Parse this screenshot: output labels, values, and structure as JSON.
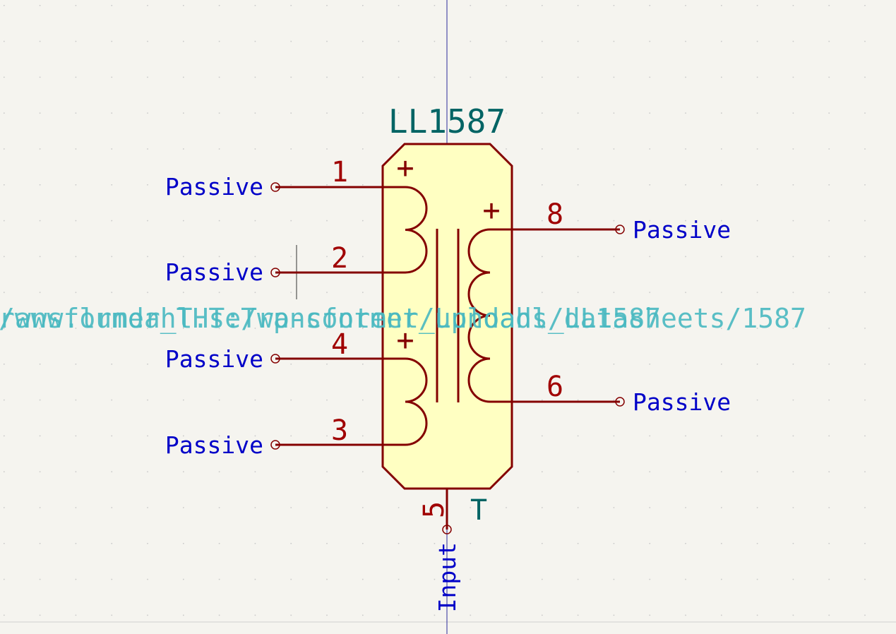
{
  "component": {
    "reference": "LL1587",
    "value": "T"
  },
  "pins": [
    {
      "number": "1",
      "type": "Passive"
    },
    {
      "number": "2",
      "type": "Passive"
    },
    {
      "number": "4",
      "type": "Passive"
    },
    {
      "number": "3",
      "type": "Passive"
    },
    {
      "number": "8",
      "type": "Passive"
    },
    {
      "number": "6",
      "type": "Passive"
    },
    {
      "number": "5",
      "type": "Input"
    }
  ],
  "polarity_marks": [
    "+",
    "+",
    "+"
  ],
  "overlay": {
    "line_a": "ransformer_THT:Transformer_Lundahl_LL1587",
    "line_b": "/www.lundahl.se/wp-content/uploads/datasheets/1587"
  },
  "colors": {
    "background": "#f5f4ef",
    "grid": "#d0d0d0",
    "body_fill": "#ffffc2",
    "body_stroke": "#840000",
    "pin_number": "#a00000",
    "pin_type": "#0000c8",
    "ref": "#006464",
    "overlay": "#48b8c0",
    "crosshair": "#2a2a9a"
  }
}
